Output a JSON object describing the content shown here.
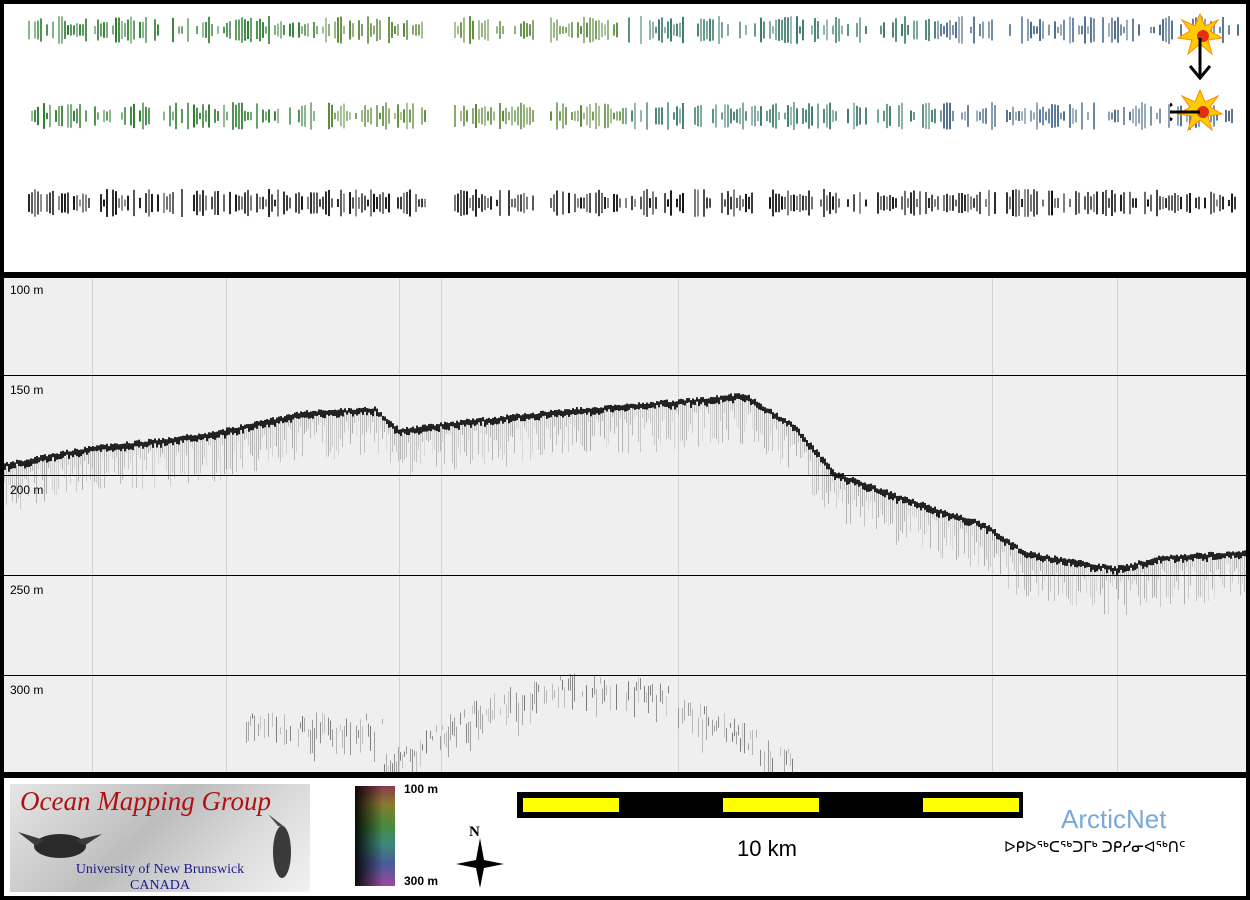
{
  "profile": {
    "depth_labels": [
      "100 m",
      "150 m",
      "200 m",
      "250 m",
      "300 m"
    ]
  },
  "legend": {
    "logo": {
      "title": "Ocean Mapping Group",
      "university": "University of New Brunswick",
      "country": "CANADA"
    },
    "colorbar": {
      "top_label": "100 m",
      "bottom_label": "300 m",
      "colors": [
        "#8a3a4a",
        "#8a7a30",
        "#4a8a3a",
        "#3a8a7a",
        "#4a5a9a",
        "#9a4a9a"
      ]
    },
    "north_arrow": {
      "label": "N"
    },
    "scale_bar": {
      "label": "10 km",
      "segment_color": "#ffff00"
    },
    "arcticnet": {
      "name": "ArcticNet",
      "syllabics": "ᐅᑭᐅᖅᑕᖅᑐᒥᒃ ᑐᑭᓯᓂᐊᖅᑎᑦ"
    }
  },
  "map": {
    "strip_colors": [
      "#2e7d32",
      "#5a8a3a",
      "#3a7a6a",
      "#4a6a8a"
    ],
    "marker_icons": [
      "explosion-icon",
      "arrow-down-icon",
      "explosion-icon",
      "arrow-left-icon"
    ]
  }
}
